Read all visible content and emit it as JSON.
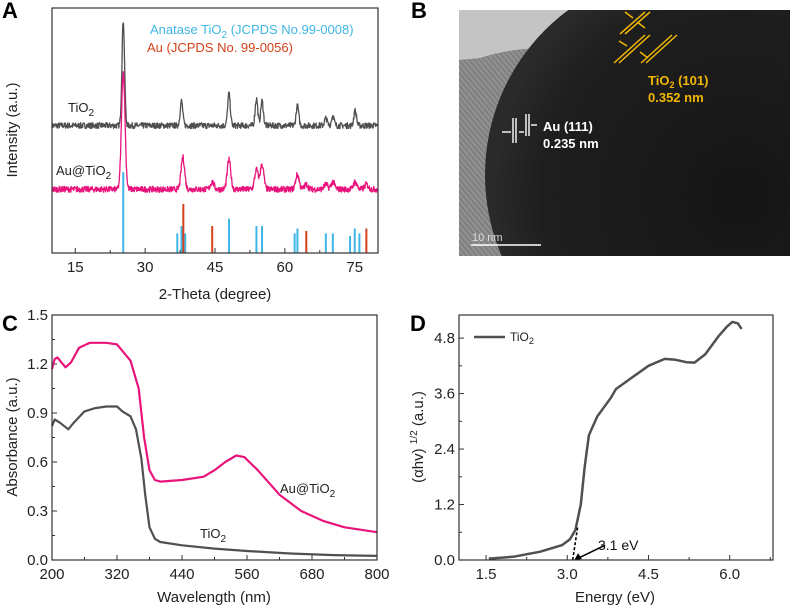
{
  "panels": {
    "a": "A",
    "b": "B",
    "c": "C",
    "d": "D"
  },
  "colors": {
    "tio2": "#505050",
    "au_tio2": "#e8147c",
    "anatase": "#3fb6e6",
    "au": "#d6401a",
    "tem_label": "#f2b705"
  },
  "chart_data": [
    {
      "id": "A",
      "type": "line",
      "title": "",
      "xlabel": "2-Theta (degree)",
      "ylabel": "Intensity (a.u.)",
      "xlim": [
        10,
        80
      ],
      "ylim": [
        0,
        100
      ],
      "xticks": [
        "15",
        "30",
        "45",
        "60",
        "75"
      ],
      "xtick_values": [
        15,
        30,
        45,
        60,
        75
      ],
      "legend": {
        "anatase": {
          "pre": "Anatase TiO",
          "sub": "2",
          "post": " (JCPDS No.99-0008)"
        },
        "au": "Au (JCPDS No. 99-0056)"
      },
      "series": [
        {
          "name": "TiO2",
          "label_pre": "TiO",
          "label_sub": "2",
          "baseline": 52,
          "sigma": 0.28,
          "peaks": [
            [
              25.3,
              43
            ],
            [
              37.8,
              10
            ],
            [
              48.0,
              13
            ],
            [
              53.9,
              11
            ],
            [
              55.1,
              10
            ],
            [
              62.7,
              8
            ],
            [
              68.8,
              3
            ],
            [
              70.3,
              4
            ],
            [
              75.1,
              6
            ]
          ]
        },
        {
          "name": "Au@TiO2",
          "label_pre": "Au@TiO",
          "label_sub": "2",
          "baseline": 26,
          "sigma": 0.38,
          "peaks": [
            [
              25.3,
              48
            ],
            [
              38.1,
              13
            ],
            [
              44.4,
              3
            ],
            [
              48.0,
              12
            ],
            [
              53.9,
              8
            ],
            [
              55.1,
              10
            ],
            [
              62.7,
              6
            ],
            [
              64.6,
              2
            ],
            [
              68.8,
              2
            ],
            [
              70.3,
              3
            ],
            [
              75.1,
              3
            ],
            [
              77.5,
              2
            ]
          ]
        }
      ],
      "reference_sticks": {
        "anatase": [
          [
            25.3,
            33
          ],
          [
            36.9,
            8
          ],
          [
            37.8,
            11
          ],
          [
            38.6,
            8
          ],
          [
            48.0,
            14
          ],
          [
            53.9,
            11
          ],
          [
            55.1,
            11
          ],
          [
            62.1,
            8
          ],
          [
            62.7,
            10
          ],
          [
            68.8,
            8
          ],
          [
            70.3,
            8
          ],
          [
            74.0,
            7
          ],
          [
            75.0,
            10
          ],
          [
            76.0,
            8
          ]
        ],
        "au": [
          [
            38.2,
            20
          ],
          [
            44.4,
            11
          ],
          [
            64.6,
            9
          ],
          [
            77.5,
            10
          ]
        ]
      }
    },
    {
      "id": "C",
      "type": "line",
      "title": "",
      "xlabel": "Wavelength (nm)",
      "ylabel": "Absorbance (a.u.)",
      "xlim": [
        200,
        800
      ],
      "ylim": [
        0,
        1.5
      ],
      "xticks": [
        "200",
        "320",
        "440",
        "560",
        "680",
        "800"
      ],
      "xtick_values": [
        200,
        320,
        440,
        560,
        680,
        800
      ],
      "yticks": [
        "0.0",
        "0.3",
        "0.6",
        "0.9",
        "1.2",
        "1.5"
      ],
      "ytick_values": [
        0,
        0.3,
        0.6,
        0.9,
        1.2,
        1.5
      ],
      "series": [
        {
          "name": "TiO2",
          "label_pre": "TiO",
          "label_sub": "2",
          "x": [
            200,
            205,
            215,
            230,
            240,
            260,
            280,
            300,
            320,
            330,
            345,
            355,
            365,
            372,
            380,
            390,
            400,
            440,
            500,
            560,
            640,
            720,
            800
          ],
          "y": [
            0.82,
            0.86,
            0.84,
            0.8,
            0.84,
            0.91,
            0.93,
            0.94,
            0.94,
            0.91,
            0.88,
            0.8,
            0.62,
            0.4,
            0.2,
            0.13,
            0.11,
            0.09,
            0.07,
            0.055,
            0.04,
            0.03,
            0.025
          ]
        },
        {
          "name": "Au@TiO2",
          "label_pre": "Au@TiO",
          "label_sub": "2",
          "x": [
            200,
            205,
            210,
            225,
            235,
            250,
            270,
            300,
            320,
            330,
            345,
            360,
            370,
            380,
            390,
            400,
            440,
            480,
            500,
            520,
            540,
            555,
            580,
            620,
            660,
            700,
            740,
            800
          ],
          "y": [
            1.17,
            1.23,
            1.24,
            1.18,
            1.21,
            1.3,
            1.33,
            1.33,
            1.32,
            1.28,
            1.22,
            1.05,
            0.75,
            0.55,
            0.49,
            0.48,
            0.49,
            0.51,
            0.55,
            0.6,
            0.64,
            0.63,
            0.55,
            0.4,
            0.3,
            0.24,
            0.2,
            0.17
          ]
        }
      ]
    },
    {
      "id": "D",
      "type": "line",
      "title": "",
      "xlabel": "Energy (eV)",
      "ylabel_pre": "(αhv) ",
      "ylabel_sup": "1/2",
      "ylabel_post": " (a.u.)",
      "xlim": [
        1.0,
        6.8
      ],
      "ylim": [
        0,
        5.3
      ],
      "xticks": [
        "1.5",
        "3.0",
        "4.5",
        "6.0"
      ],
      "xtick_values": [
        1.5,
        3.0,
        4.5,
        6.0
      ],
      "yticks": [
        "0.0",
        "1.2",
        "2.4",
        "3.6",
        "4.8"
      ],
      "ytick_values": [
        0,
        1.2,
        2.4,
        3.6,
        4.8
      ],
      "legend": {
        "pre": "TiO",
        "sub": "2"
      },
      "annotation": {
        "text": "3.1 eV",
        "x": 3.1
      },
      "series": [
        {
          "name": "TiO2",
          "x": [
            1.55,
            2.0,
            2.5,
            2.9,
            3.05,
            3.15,
            3.25,
            3.32,
            3.4,
            3.55,
            3.8,
            3.9,
            4.2,
            4.5,
            4.8,
            5.0,
            5.2,
            5.35,
            5.55,
            5.8,
            5.95,
            6.05,
            6.15,
            6.22
          ],
          "y": [
            0.03,
            0.07,
            0.18,
            0.32,
            0.45,
            0.65,
            1.2,
            2.0,
            2.7,
            3.1,
            3.5,
            3.7,
            3.95,
            4.2,
            4.35,
            4.33,
            4.28,
            4.27,
            4.45,
            4.85,
            5.05,
            5.15,
            5.12,
            5.0
          ]
        }
      ]
    }
  ],
  "tem": {
    "tio2_label_pre": "TiO",
    "tio2_label_sub": "2",
    "tio2_label_post": " (101)",
    "tio2_spacing": "0.352 nm",
    "au_label": "Au (111)",
    "au_spacing": "0.235 nm",
    "scale_bar": "10 nm"
  }
}
